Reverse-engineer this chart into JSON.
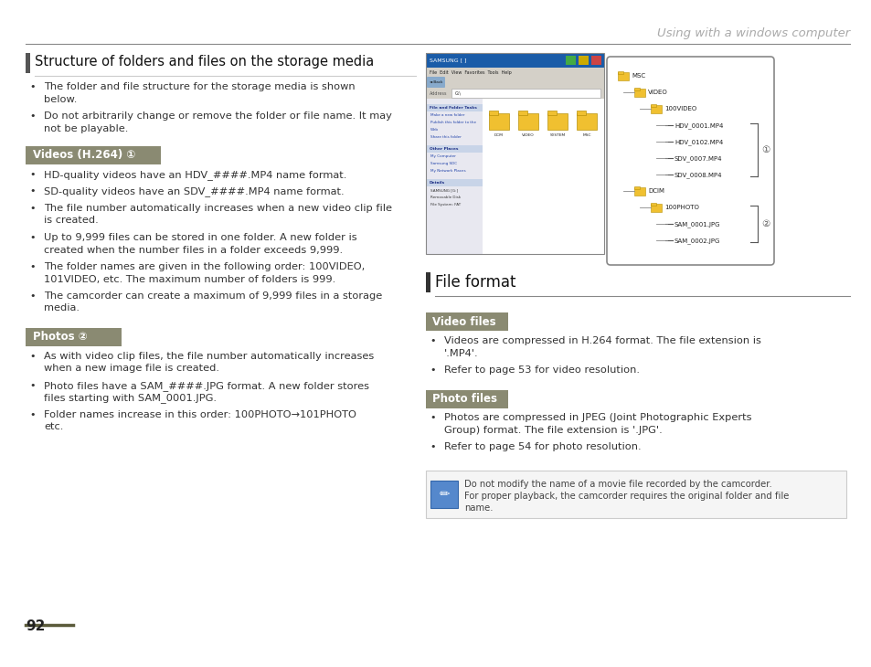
{
  "page_title": "Using with a windows computer",
  "page_number": "92",
  "bg_color": "#ffffff",
  "section1_title": "Structure of folders and files on the storage media",
  "section1_bullets": [
    "The folder and file structure for the storage media is shown\nbelow.",
    "Do not arbitrarily change or remove the folder or file name. It may\nnot be playable."
  ],
  "videos_label": "Videos (H.264) ①",
  "videos_bg": "#8a8a72",
  "videos_fg": "#ffffff",
  "videos_bullets": [
    "HD-quality videos have an HDV_####.MP4 name format.",
    "SD-quality videos have an SDV_####.MP4 name format.",
    "The file number automatically increases when a new video clip file\nis created.",
    "Up to 9,999 files can be stored in one folder. A new folder is\ncreated when the number files in a folder exceeds 9,999.",
    "The folder names are given in the following order: 100VIDEO,\n101VIDEO, etc. The maximum number of folders is 999.",
    "The camcorder can create a maximum of 9,999 files in a storage\nmedia."
  ],
  "photos_label": "Photos ②",
  "photos_bg": "#8a8a72",
  "photos_fg": "#ffffff",
  "photos_bullets": [
    "As with video clip files, the file number automatically increases\nwhen a new image file is created.",
    "Photo files have a SAM_####.JPG format. A new folder stores\nfiles starting with SAM_0001.JPG.",
    "Folder names increase in this order: 100PHOTO→101PHOTO\netc."
  ],
  "file_format_title": "File format",
  "video_files_label": "Video files",
  "video_files_bg": "#8a8a72",
  "video_files_fg": "#ffffff",
  "video_files_bullets": [
    "Videos are compressed in H.264 format. The file extension is\n'.MP4'.",
    "Refer to page 53 for video resolution."
  ],
  "photo_files_label": "Photo files",
  "photo_files_bg": "#8a8a72",
  "photo_files_fg": "#ffffff",
  "photo_files_bullets": [
    "Photos are compressed in JPEG (Joint Photographic Experts\nGroup) format. The file extension is '.JPG'.",
    "Refer to page 54 for photo resolution."
  ],
  "note_text": "Do not modify the name of a movie file recorded by the camcorder.\nFor proper playback, the camcorder requires the original folder and file\nname.",
  "tree_items": [
    [
      0,
      "MSC"
    ],
    [
      1,
      "VIDEO"
    ],
    [
      2,
      "100VIDEO"
    ],
    [
      3,
      "HDV_0001.MP4"
    ],
    [
      3,
      "HDV_0102.MP4"
    ],
    [
      3,
      "SDV_0007.MP4"
    ],
    [
      3,
      "SDV_0008.MP4"
    ],
    [
      1,
      "DCIM"
    ],
    [
      2,
      "100PHOTO"
    ],
    [
      3,
      "SAM_0001.JPG"
    ],
    [
      3,
      "SAM_0002.JPG"
    ]
  ]
}
